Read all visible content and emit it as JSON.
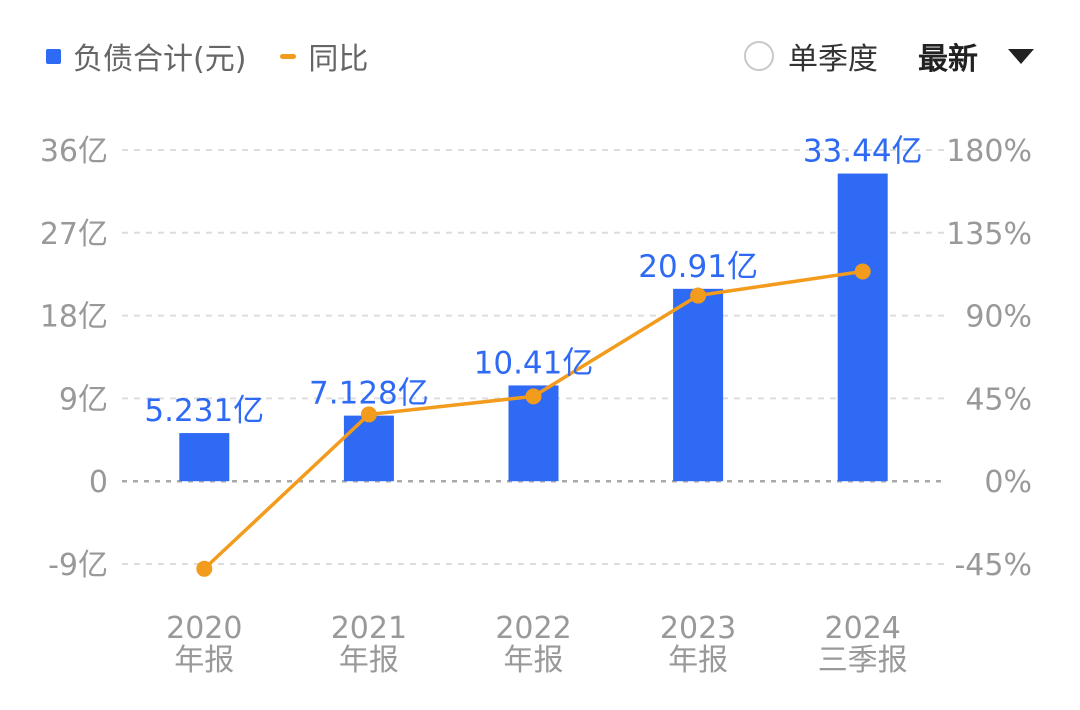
{
  "legend": {
    "bar_label": "负债合计(元)",
    "line_label": "同比"
  },
  "controls": {
    "quarter_toggle_label": "单季度",
    "quarter_toggle_checked": false,
    "sort_label": "最新"
  },
  "colors": {
    "bar": "#2f6af5",
    "line": "#f29b1d",
    "bar_label_text": "#2f6af5",
    "axis_text": "#999999",
    "grid": "#dddddd",
    "zero_line": "#aaaaaa"
  },
  "chart_data": {
    "type": "bar",
    "categories": [
      [
        "2020",
        "年报"
      ],
      [
        "2021",
        "年报"
      ],
      [
        "2022",
        "年报"
      ],
      [
        "2023",
        "年报"
      ],
      [
        "2024",
        "三季报"
      ]
    ],
    "series": [
      {
        "name": "负债合计(元)",
        "type": "bar",
        "axis": "left",
        "values": [
          5.231,
          7.128,
          10.41,
          20.91,
          33.44
        ],
        "data_labels": [
          "5.231亿",
          "7.128亿",
          "10.41亿",
          "20.91亿",
          "33.44亿"
        ]
      },
      {
        "name": "同比",
        "type": "line",
        "axis": "right",
        "values": [
          -47.6,
          36.3,
          46.1,
          100.9,
          114.0
        ]
      }
    ],
    "y_left": {
      "ylim": [
        -9,
        36
      ],
      "ticks": [
        36,
        27,
        18,
        9,
        0,
        -9
      ],
      "tick_labels": [
        "36亿",
        "27亿",
        "18亿",
        "9亿",
        "0",
        "-9亿"
      ]
    },
    "y_right": {
      "ylim": [
        -45,
        180
      ],
      "ticks": [
        180,
        135,
        90,
        45,
        0,
        -45
      ],
      "tick_labels": [
        "180%",
        "135%",
        "90%",
        "45%",
        "0%",
        "-45%"
      ]
    },
    "grid": true
  }
}
